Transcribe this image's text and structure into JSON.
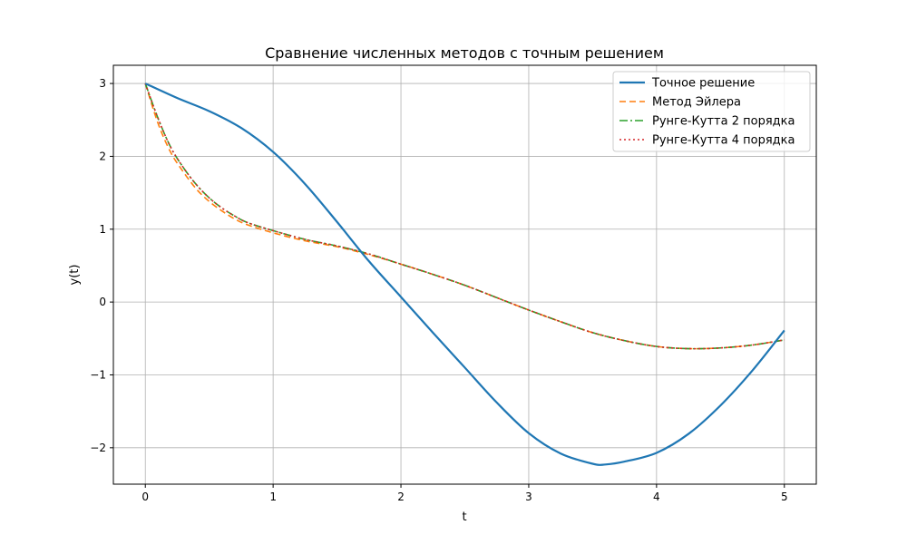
{
  "chart_data": {
    "type": "line",
    "title": "Сравнение численных методов с точным решением",
    "xlabel": "t",
    "ylabel": "y(t)",
    "xlim": [
      -0.25,
      5.25
    ],
    "ylim": [
      -2.5,
      3.25
    ],
    "xticks": [
      0,
      1,
      2,
      3,
      4,
      5
    ],
    "yticks": [
      -2,
      -1,
      0,
      1,
      2,
      3
    ],
    "xtick_labels": [
      "0",
      "1",
      "2",
      "3",
      "4",
      "5"
    ],
    "ytick_labels": [
      "−2",
      "−1",
      "0",
      "1",
      "2",
      "3"
    ],
    "grid": true,
    "legend_position": "top-right",
    "series": [
      {
        "name": "Точное решение",
        "color": "#1f77b4",
        "style": "solid",
        "x": [
          0,
          0.25,
          0.5,
          0.75,
          1.0,
          1.25,
          1.5,
          1.75,
          2.0,
          2.25,
          2.5,
          2.75,
          3.0,
          3.25,
          3.5,
          3.6,
          3.75,
          4.0,
          4.25,
          4.5,
          4.75,
          5.0
        ],
        "y": [
          3.0,
          2.8,
          2.62,
          2.39,
          2.06,
          1.62,
          1.1,
          0.56,
          0.07,
          -0.42,
          -0.9,
          -1.38,
          -1.8,
          -2.08,
          -2.22,
          -2.23,
          -2.19,
          -2.07,
          -1.81,
          -1.42,
          -0.94,
          -0.39
        ]
      },
      {
        "name": "Метод Эйлера",
        "color": "#ff7f0e",
        "style": "dashed",
        "x": [
          0,
          0.1,
          0.2,
          0.3,
          0.4,
          0.5,
          0.6,
          0.7,
          0.8,
          1.0,
          1.25,
          1.5,
          1.75,
          2.0,
          2.25,
          2.5,
          2.75,
          3.0,
          3.25,
          3.5,
          3.75,
          4.0,
          4.25,
          4.5,
          4.75,
          5.0
        ],
        "y": [
          3.0,
          2.45,
          2.05,
          1.78,
          1.55,
          1.38,
          1.25,
          1.14,
          1.06,
          0.95,
          0.84,
          0.76,
          0.65,
          0.52,
          0.38,
          0.23,
          0.06,
          -0.11,
          -0.27,
          -0.42,
          -0.53,
          -0.61,
          -0.64,
          -0.63,
          -0.59,
          -0.52
        ]
      },
      {
        "name": "Рунге-Кутта 2 порядка",
        "color": "#2ca02c",
        "style": "dashdot",
        "x": [
          0,
          0.1,
          0.2,
          0.3,
          0.4,
          0.5,
          0.6,
          0.7,
          0.8,
          1.0,
          1.25,
          1.5,
          1.75,
          2.0,
          2.25,
          2.5,
          2.75,
          3.0,
          3.25,
          3.5,
          3.75,
          4.0,
          4.25,
          4.5,
          4.75,
          5.0
        ],
        "y": [
          3.0,
          2.52,
          2.12,
          1.84,
          1.61,
          1.43,
          1.29,
          1.18,
          1.09,
          0.98,
          0.86,
          0.77,
          0.66,
          0.52,
          0.38,
          0.23,
          0.06,
          -0.11,
          -0.27,
          -0.42,
          -0.53,
          -0.61,
          -0.64,
          -0.63,
          -0.59,
          -0.52
        ]
      },
      {
        "name": "Рунге-Кутта 4 порядка",
        "color": "#d62728",
        "style": "dotted",
        "x": [
          0,
          0.1,
          0.2,
          0.3,
          0.4,
          0.5,
          0.6,
          0.7,
          0.8,
          1.0,
          1.25,
          1.5,
          1.75,
          2.0,
          2.25,
          2.5,
          2.75,
          3.0,
          3.25,
          3.5,
          3.75,
          4.0,
          4.25,
          4.5,
          4.75,
          5.0
        ],
        "y": [
          3.0,
          2.52,
          2.12,
          1.84,
          1.61,
          1.43,
          1.29,
          1.18,
          1.09,
          0.98,
          0.86,
          0.77,
          0.66,
          0.52,
          0.38,
          0.23,
          0.06,
          -0.11,
          -0.27,
          -0.42,
          -0.53,
          -0.61,
          -0.64,
          -0.63,
          -0.59,
          -0.52
        ]
      }
    ]
  }
}
